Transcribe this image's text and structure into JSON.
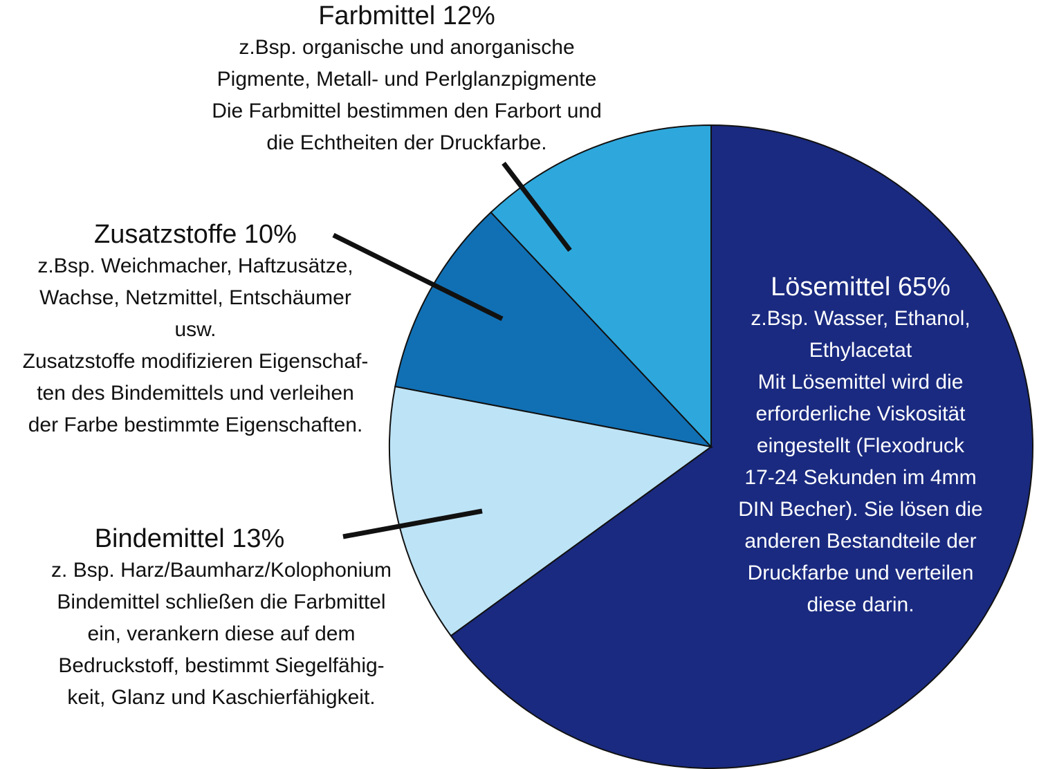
{
  "chart_data": {
    "type": "pie",
    "start_angle_deg": 0,
    "direction": "clockwise",
    "slices": [
      {
        "key": "loese",
        "title": "Lösemittel 65%",
        "value": 65,
        "color": "#1a2a80",
        "description": "z.Bsp. Wasser, Ethanol,\nEthylacetat\nMit Lösemittel wird die\nerforderliche Viskosität\neingestellt (Flexodruck\n17-24 Sekunden im 4mm\nDIN Becher). Sie lösen die\nanderen Bestandteile der\nDruckfarbe und verteilen\ndiese darin."
      },
      {
        "key": "binde",
        "title": "Bindemittel 13%",
        "value": 13,
        "color": "#bde3f6",
        "description": "z. Bsp. Harz/Baumharz/Kolophonium\nBindemittel schließen die Farbmittel\nein, verankern diese auf dem\nBedruckstoff, bestimmt Siegelfähig-\nkeit, Glanz und Kaschierfähigkeit."
      },
      {
        "key": "zusatz",
        "title": "Zusatzstoffe 10%",
        "value": 10,
        "color": "#1170b4",
        "description": "z.Bsp. Weichmacher, Haftzusätze,\nWachse, Netzmittel, Entschäumer\nusw.\nZusatzstoffe modifizieren Eigenschaf-\nten des Bindemittels und verleihen\nder Farbe bestimmte Eigenschaften."
      },
      {
        "key": "farb",
        "title": "Farbmittel 12%",
        "value": 12,
        "color": "#2ea8dc",
        "description": "z.Bsp. organische und anorganische\nPigmente, Metall- und Perlglanzpigmente\nDie Farbmittel bestimmen den Farbort und\ndie Echtheiten der Druckfarbe."
      }
    ]
  }
}
